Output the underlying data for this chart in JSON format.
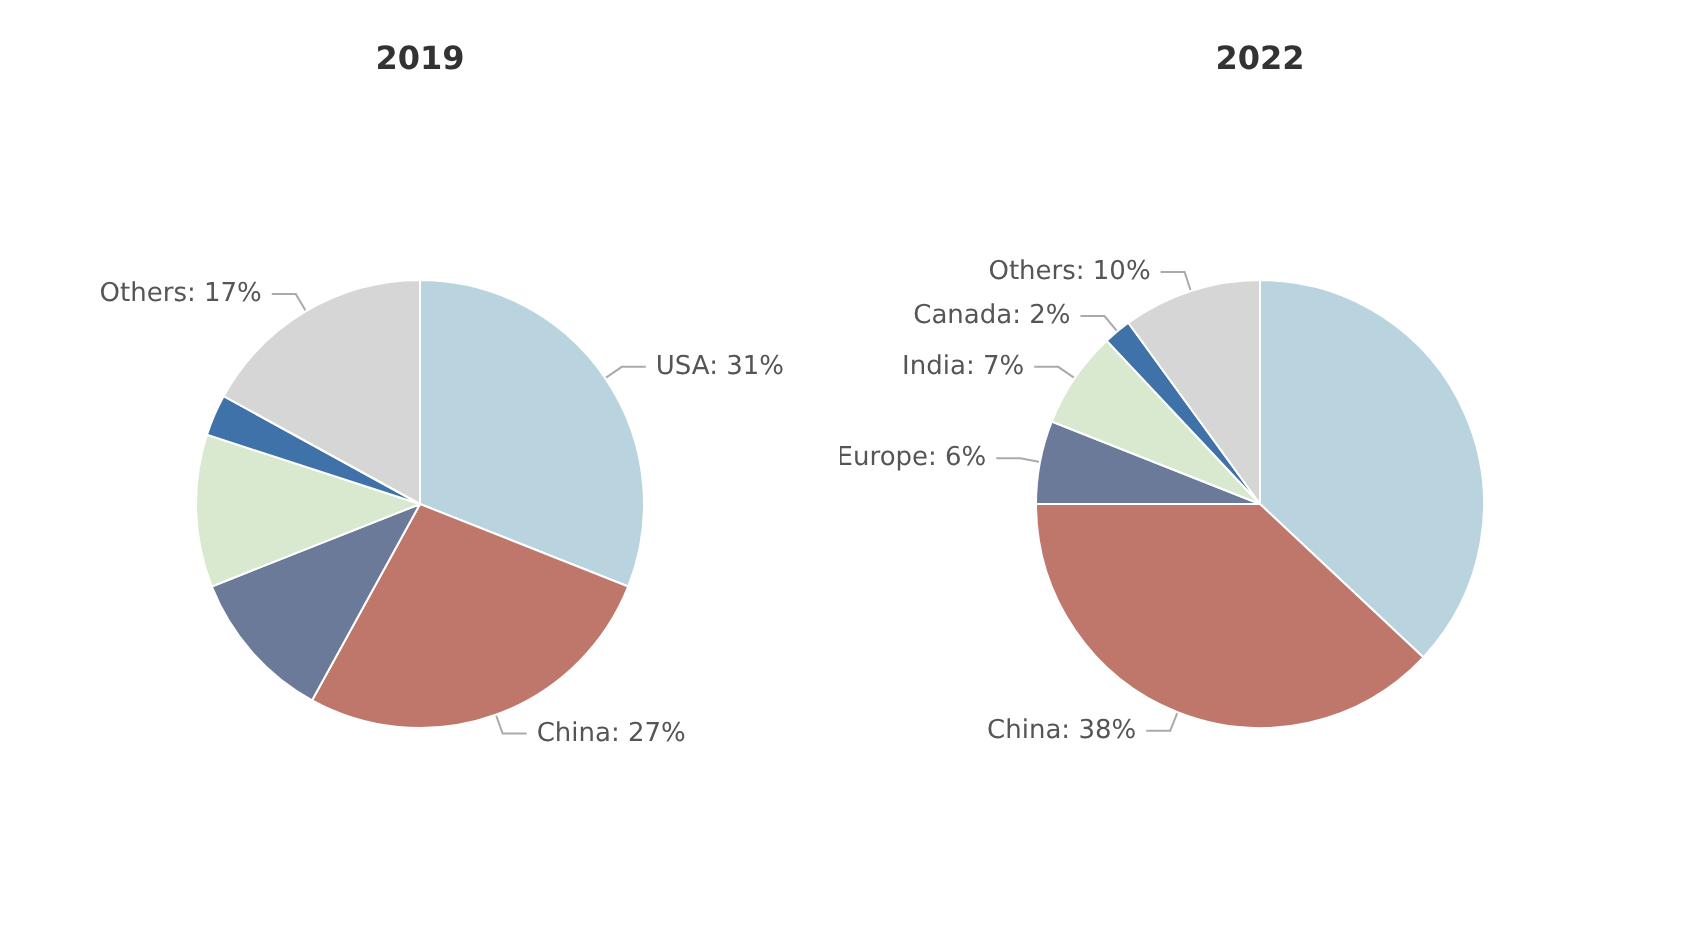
{
  "chart_data": [
    {
      "type": "pie",
      "title": "2019",
      "categories": [
        "USA",
        "China",
        null,
        null,
        null,
        "Others"
      ],
      "values": [
        31,
        27,
        11,
        11,
        3,
        17
      ],
      "colors": [
        "#b9d4df",
        "#c0776b",
        "#6b7a99",
        "#d8e9cf",
        "#3f72a8",
        "#d6d6d6"
      ],
      "value_labels": [
        "31%",
        "27%",
        null,
        null,
        null,
        "17%"
      ]
    },
    {
      "type": "pie",
      "title": "2022",
      "categories": [
        null,
        "China",
        "Europe",
        "India",
        "Canada",
        "Others"
      ],
      "values": [
        37,
        38,
        6,
        7,
        2,
        10
      ],
      "colors": [
        "#b9d4df",
        "#c0776b",
        "#6b7a99",
        "#d8e9cf",
        "#3f72a8",
        "#d6d6d6"
      ],
      "value_labels": [
        null,
        "38%",
        "6%",
        "7%",
        "2%",
        "10%"
      ]
    }
  ]
}
